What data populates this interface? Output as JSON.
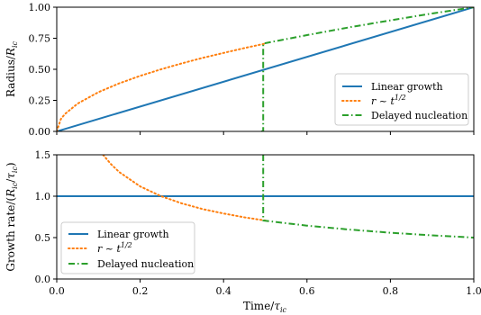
{
  "chart_data": [
    {
      "type": "line",
      "ylabel": "Radius/R_ic",
      "ylabel_display": {
        "main": "Radius/",
        "sym": "R",
        "sub": "ic"
      },
      "xlim": [
        0,
        1
      ],
      "ylim": [
        0,
        1
      ],
      "xticks": [
        "0.0",
        "0.2",
        "0.4",
        "0.6",
        "0.8",
        "1.0"
      ],
      "yticks": [
        "0.00",
        "0.25",
        "0.50",
        "0.75",
        "1.00"
      ],
      "ytick_values": [
        0,
        0.25,
        0.5,
        0.75,
        1.0
      ],
      "legend": "lower-right",
      "series": [
        {
          "name": "Linear growth",
          "color": "#1f77b4",
          "style": "solid",
          "x": [
            0,
            1
          ],
          "y": [
            0,
            1
          ]
        },
        {
          "name": "r ~ t^1/2",
          "color": "#ff7f0e",
          "style": "dotted",
          "x": [
            0,
            0.01,
            0.02,
            0.05,
            0.1,
            0.15,
            0.2,
            0.25,
            0.3,
            0.35,
            0.4,
            0.45,
            0.5
          ],
          "y": [
            0,
            0.1,
            0.141,
            0.224,
            0.316,
            0.387,
            0.447,
            0.5,
            0.548,
            0.592,
            0.632,
            0.671,
            0.707
          ]
        },
        {
          "name": "Delayed nucleation",
          "color": "#2ca02c",
          "style": "dashdot",
          "x": [
            0.49,
            0.495,
            0.495,
            0.6,
            0.7,
            0.8,
            0.9,
            1.0
          ],
          "y": [
            0,
            0,
            0.707,
            0.775,
            0.837,
            0.894,
            0.949,
            1.0
          ]
        }
      ]
    },
    {
      "type": "line",
      "xlabel": "Time/τ_ic",
      "xlabel_display": {
        "main": "Time/",
        "sym": "τ",
        "sub": "ic"
      },
      "ylabel": "Growth rate/(R_ic/τ_ic)",
      "ylabel_display": {
        "main": "Growth rate/(",
        "sym1": "R",
        "sub1": "ic",
        "slash": "/",
        "sym2": "τ",
        "sub2": "ic",
        "close": ")"
      },
      "xlim": [
        0,
        1
      ],
      "ylim": [
        0,
        1.5
      ],
      "xticks": [
        "0.0",
        "0.2",
        "0.4",
        "0.6",
        "0.8",
        "1.0"
      ],
      "yticks": [
        "0.0",
        "0.5",
        "1.0",
        "1.5"
      ],
      "ytick_values": [
        0,
        0.5,
        1.0,
        1.5
      ],
      "legend": "lower-left",
      "series": [
        {
          "name": "Linear growth",
          "color": "#1f77b4",
          "style": "solid",
          "x": [
            0,
            1
          ],
          "y": [
            1,
            1
          ]
        },
        {
          "name": "r ~ t^1/2",
          "color": "#ff7f0e",
          "style": "dotted",
          "x": [
            0.111,
            0.13,
            0.15,
            0.2,
            0.25,
            0.3,
            0.35,
            0.4,
            0.45,
            0.5
          ],
          "y": [
            1.5,
            1.387,
            1.291,
            1.118,
            1.0,
            0.913,
            0.845,
            0.791,
            0.745,
            0.707
          ]
        },
        {
          "name": "Delayed nucleation",
          "color": "#2ca02c",
          "style": "dashdot",
          "x": [
            0.495,
            0.495,
            0.6,
            0.7,
            0.8,
            0.9,
            1.0
          ],
          "y": [
            1.5,
            0.707,
            0.645,
            0.598,
            0.559,
            0.527,
            0.5
          ]
        }
      ]
    }
  ],
  "legend_labels": {
    "linear": "Linear growth",
    "sqrt_main": "r ~ t",
    "sqrt_exp": "1/2",
    "delayed": "Delayed nucleation"
  }
}
